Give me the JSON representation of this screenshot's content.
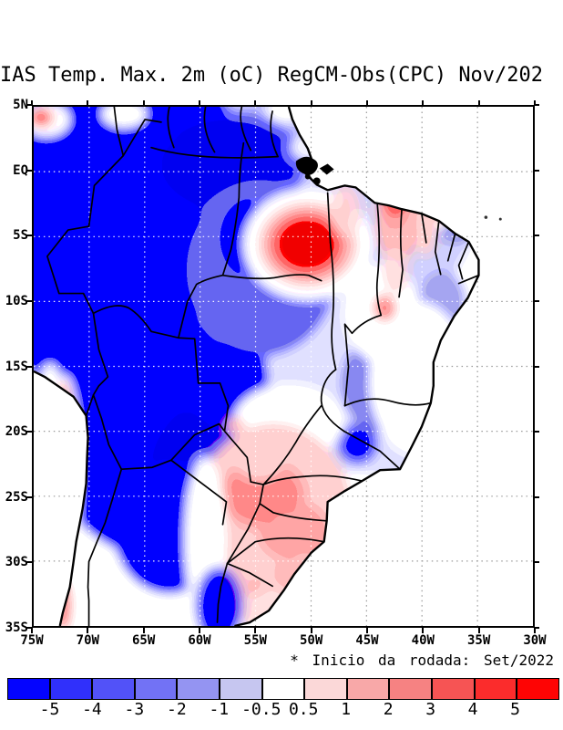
{
  "title": "IAS Temp. Max. 2m (oC) RegCM-Obs(CPC) Nov/202",
  "map": {
    "lat_labels": [
      "5N",
      "EQ",
      "5S",
      "10S",
      "15S",
      "20S",
      "25S",
      "30S",
      "35S"
    ],
    "lon_labels": [
      "75W",
      "70W",
      "65W",
      "60W",
      "55W",
      "50W",
      "45W",
      "40W",
      "35W",
      "30W"
    ]
  },
  "legend": {
    "note": "* Inicio da rodada: Set/2022"
  },
  "colorbar": {
    "tick_labels": [
      "-5",
      "-4",
      "-3",
      "-2",
      "-1",
      "-0.5",
      "0.5",
      "1",
      "2",
      "3",
      "4",
      "5"
    ],
    "colors": [
      "#0404ff",
      "#3030fb",
      "#5252f8",
      "#7272f5",
      "#9494f2",
      "#c6c6f0",
      "#ffffff",
      "#fbd8d8",
      "#f8a8a8",
      "#f68282",
      "#f65454",
      "#fb2c2c",
      "#fe0404"
    ]
  },
  "chart_data": {
    "type": "heatmap",
    "subtype": "filled-contour geographic bias map",
    "title": "IAS Temp. Max. 2m (oC) RegCM-Obs(CPC) Nov/202",
    "xlabel": "longitude",
    "ylabel": "latitude",
    "x_ticks": [
      "75W",
      "70W",
      "65W",
      "60W",
      "55W",
      "50W",
      "45W",
      "40W",
      "35W",
      "30W"
    ],
    "y_ticks": [
      "5N",
      "EQ",
      "5S",
      "10S",
      "15S",
      "20S",
      "25S",
      "30S",
      "35S"
    ],
    "xlim": [
      "75W",
      "30W"
    ],
    "ylim": [
      "35S",
      "5N"
    ],
    "grid": "dotted graticule every 5 degrees",
    "legend_position": "horizontal colorbar at bottom",
    "colorbar_levels": [
      -5,
      -4,
      -3,
      -2,
      -1,
      -0.5,
      0.5,
      1,
      2,
      3,
      4,
      5
    ],
    "units": "oC",
    "annotation": "* Inicio da rodada: Set/2022",
    "regions": [
      {
        "region": "western Amazon / Peru / Colombia (75-60W, 5N-15S)",
        "bias": "-4 to < -5"
      },
      {
        "region": "Andes strip and NW Argentina (70-63W, 15S-33S)",
        "bias": "-4 to < -5"
      },
      {
        "region": "north-central Brazil / Guianas",
        "bias": "-1 to -3"
      },
      {
        "region": "coastal N Brazil red spot (~50W, 5-7S)",
        "bias": "+3 to > +5"
      },
      {
        "region": "NE Brazil interior streaks (~42W, 3-10S)",
        "bias": "+1 to +3"
      },
      {
        "region": "eastern NE tip (Pernambuco/Paraiba, ~37W, 6-10S)",
        "bias": "-1 to -2"
      },
      {
        "region": "Minas Gerais (~45W, 17-20S)",
        "bias": "-2 to -4"
      },
      {
        "region": "Paraguay / S Brazil / Uruguay (58-50W, 20-34S)",
        "bias": "+0.5 to +3"
      },
      {
        "region": "N Chile coast strip (~70W, 19-26S and 33-35S)",
        "bias": "+4 to > +5"
      },
      {
        "region": "small spot NW corner (~74W, 4N)",
        "bias": "+2 to +4"
      },
      {
        "region": "ocean",
        "bias": "no data (white)"
      }
    ]
  }
}
